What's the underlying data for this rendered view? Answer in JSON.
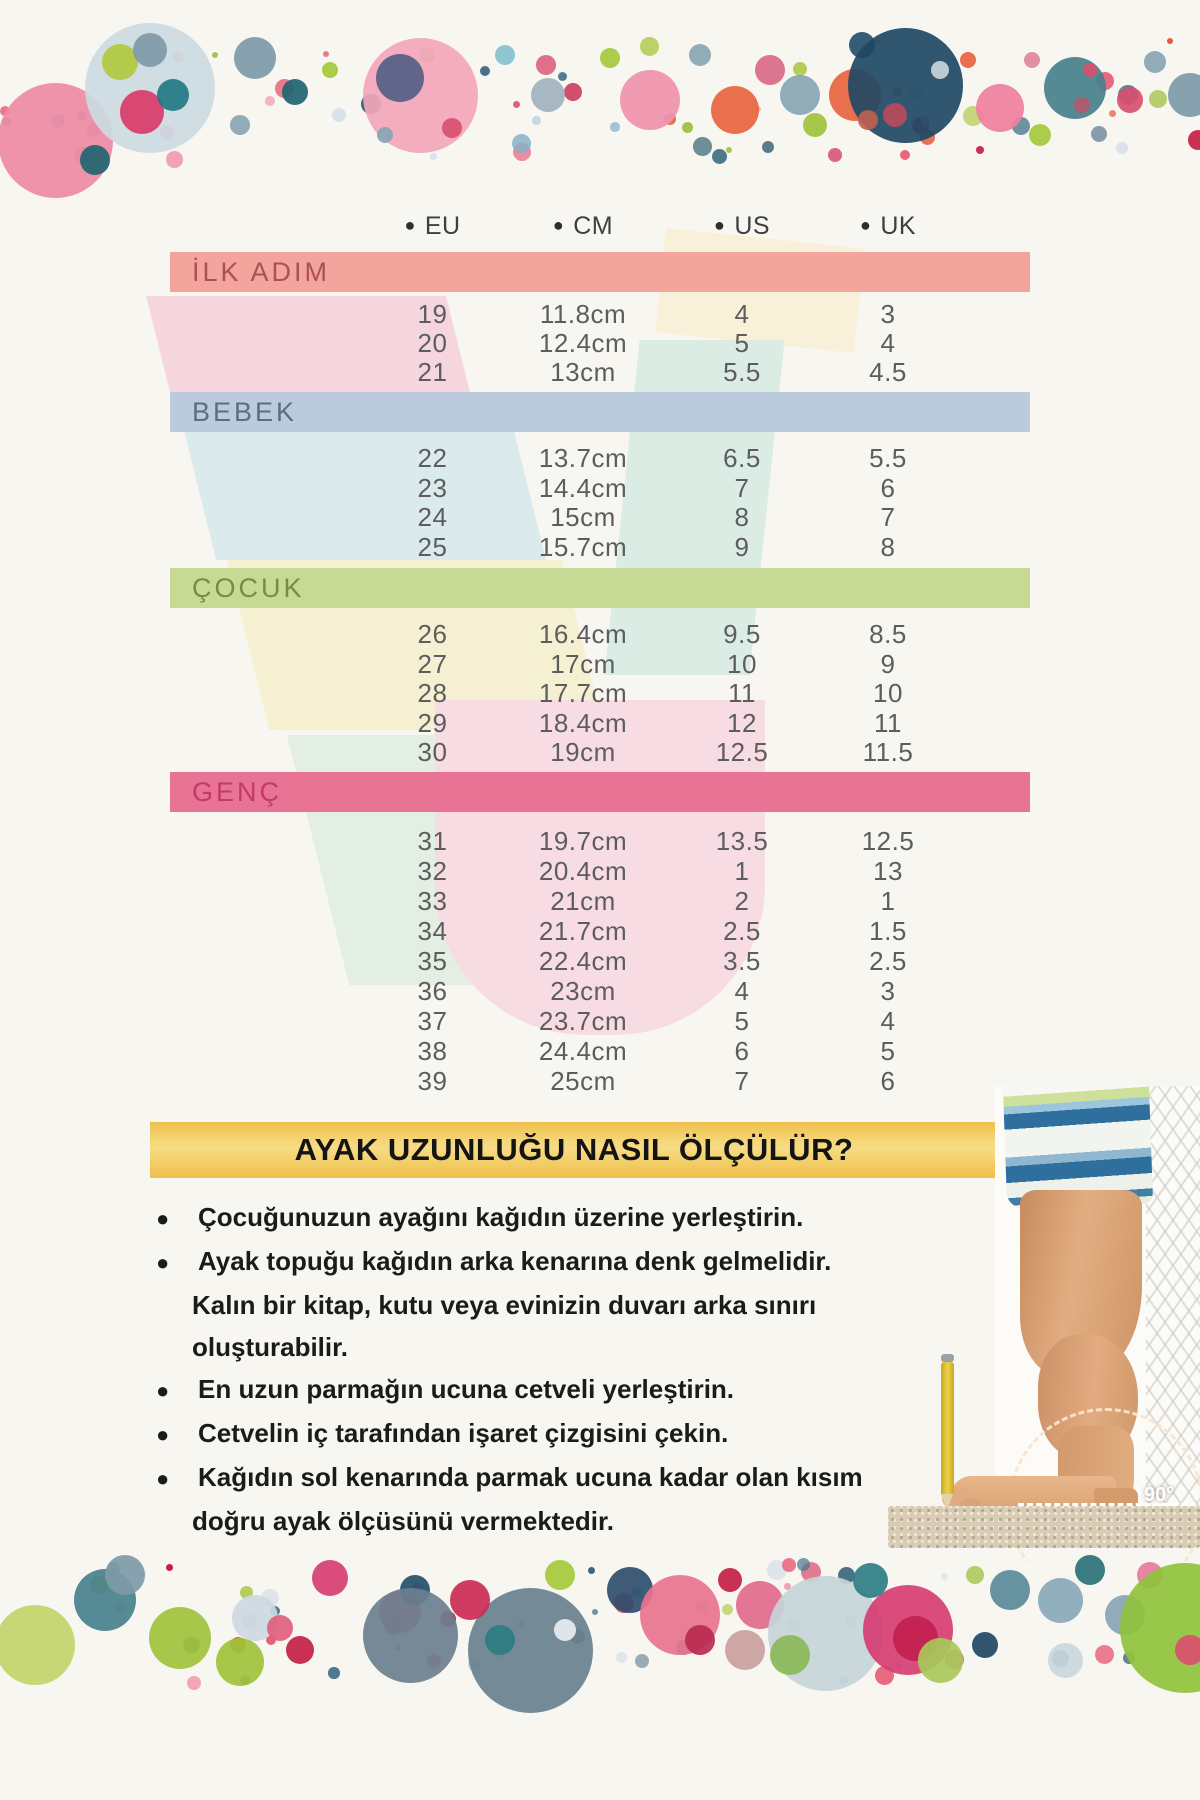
{
  "size_table": {
    "column_headers": [
      "EU",
      "CM",
      "US",
      "UK"
    ],
    "sections": [
      {
        "label": "İLK ADIM",
        "band_color": "#f2a49d",
        "label_color": "#ad5150",
        "rows": [
          [
            "19",
            "11.8cm",
            "4",
            "3"
          ],
          [
            "20",
            "12.4cm",
            "5",
            "4"
          ],
          [
            "21",
            "13cm",
            "5.5",
            "4.5"
          ]
        ]
      },
      {
        "label": "BEBEK",
        "band_color": "#bccbdc",
        "label_color": "#5a6e84",
        "rows": [
          [
            "22",
            "13.7cm",
            "6.5",
            "5.5"
          ],
          [
            "23",
            "14.4cm",
            "7",
            "6"
          ],
          [
            "24",
            "15cm",
            "8",
            "7"
          ],
          [
            "25",
            "15.7cm",
            "9",
            "8"
          ]
        ]
      },
      {
        "label": "ÇOCUK",
        "band_color": "#c6da96",
        "label_color": "#748f42",
        "rows": [
          [
            "26",
            "16.4cm",
            "9.5",
            "8.5"
          ],
          [
            "27",
            "17cm",
            "10",
            "9"
          ],
          [
            "28",
            "17.7cm",
            "11",
            "10"
          ],
          [
            "29",
            "18.4cm",
            "12",
            "11"
          ],
          [
            "30",
            "19cm",
            "12.5",
            "11.5"
          ]
        ]
      },
      {
        "label": "GENÇ",
        "band_color": "#e87394",
        "label_color": "#c23a66",
        "rows": [
          [
            "31",
            "19.7cm",
            "13.5",
            "12.5"
          ],
          [
            "32",
            "20.4cm",
            "1",
            "13"
          ],
          [
            "33",
            "21cm",
            "2",
            "1"
          ],
          [
            "34",
            "21.7cm",
            "2.5",
            "1.5"
          ],
          [
            "35",
            "22.4cm",
            "3.5",
            "2.5"
          ],
          [
            "36",
            "23cm",
            "4",
            "3"
          ],
          [
            "37",
            "23.7cm",
            "5",
            "4"
          ],
          [
            "38",
            "24.4cm",
            "6",
            "5"
          ],
          [
            "39",
            "25cm",
            "7",
            "6"
          ]
        ]
      }
    ]
  },
  "instructions": {
    "title": "AYAK UZUNLUĞU NASIL ÖLÇÜLÜR?",
    "title_band_color": "#f3c85b",
    "items": [
      {
        "lines": [
          "Çocuğunuzun ayağını kağıdın üzerine yerleştirin."
        ]
      },
      {
        "lines": [
          "Ayak topuğu kağıdın arka kenarına denk gelmelidir.",
          "Kalın bir kitap, kutu veya evinizin duvarı arka sınırı",
          "oluşturabilir."
        ]
      },
      {
        "lines": [
          "En uzun parmağın ucuna cetveli yerleştirin."
        ]
      },
      {
        "lines": [
          "Cetvelin iç tarafından işaret çizgisini çekin."
        ]
      },
      {
        "lines": [
          "Kağıdın sol kenarında parmak ucuna kadar olan kısım",
          "doğru ayak ölçüsünü vermektedir."
        ]
      }
    ]
  },
  "photo": {
    "angle_label": "90°"
  }
}
